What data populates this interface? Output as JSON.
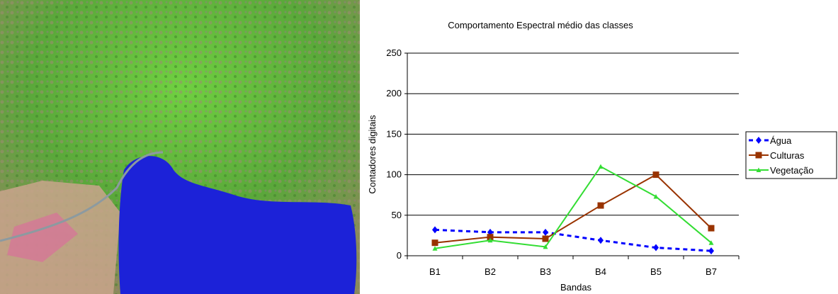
{
  "chart_data": {
    "type": "line",
    "title": "Comportamento Espectral médio das classes",
    "x_label": "Bandas",
    "y_label": "Contadores digitais",
    "categories": [
      "B1",
      "B2",
      "B3",
      "B4",
      "B5",
      "B7"
    ],
    "series": [
      {
        "name": "Água",
        "color": "#0000ff",
        "values": [
          32,
          29,
          29,
          19,
          10,
          6
        ]
      },
      {
        "name": "Culturas",
        "color": "#993300",
        "values": [
          16,
          23,
          21,
          62,
          100,
          34
        ]
      },
      {
        "name": "Vegetação",
        "color": "#33dd33",
        "values": [
          9,
          19,
          11,
          110,
          73,
          16
        ]
      }
    ],
    "ylim": [
      0,
      250
    ],
    "yticks": [
      0,
      50,
      100,
      150,
      200,
      250
    ],
    "grid": true,
    "legend": "right"
  }
}
